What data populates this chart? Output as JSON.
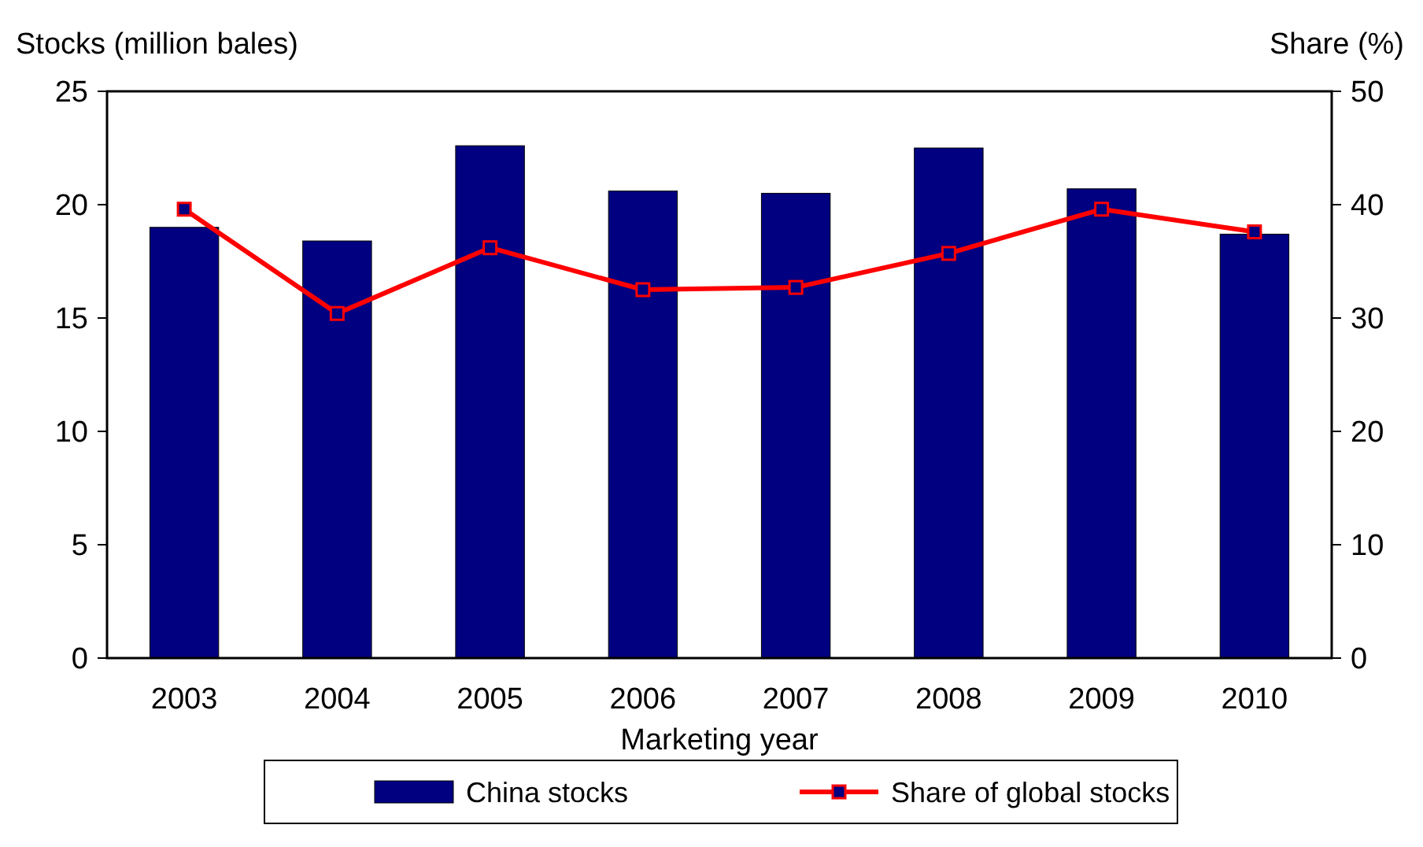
{
  "chart_data": {
    "type": "bar",
    "xlabel": "Marketing year",
    "ylabel": "Stocks (million bales)",
    "y2label": "Share (%)",
    "categories": [
      "2003",
      "2004",
      "2005",
      "2006",
      "2007",
      "2008",
      "2009",
      "2010"
    ],
    "series": [
      {
        "name": "China stocks",
        "color": "#000080",
        "values": [
          19.0,
          18.4,
          22.6,
          20.6,
          20.5,
          22.5,
          20.7,
          18.7
        ]
      },
      {
        "name": "Share of global stocks",
        "type": "line",
        "axis": "y2",
        "color": "#ff0000",
        "marker": "square",
        "values": [
          39.6,
          30.4,
          36.2,
          32.5,
          32.7,
          35.7,
          39.6,
          37.6
        ]
      }
    ],
    "ylim": [
      0,
      25
    ],
    "yticks": [
      0,
      5,
      10,
      15,
      20,
      25
    ],
    "y2lim": [
      0,
      50
    ],
    "y2ticks": [
      0,
      10,
      20,
      30,
      40,
      50
    ],
    "grid": false,
    "legend": "bottom"
  }
}
